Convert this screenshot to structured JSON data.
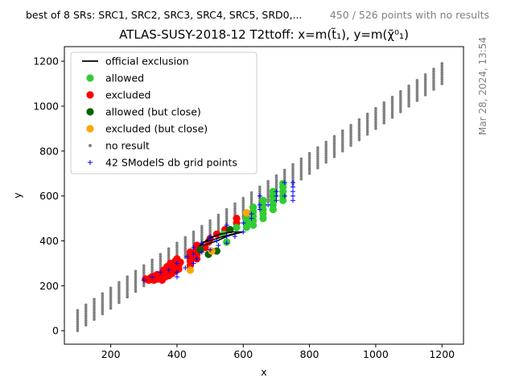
{
  "header": {
    "srs_text": "best of 8 SRs: SRC1, SRC2, SRC3, SRC4, SRC5, SRD0,...",
    "noresult_text": "450 / 526 points with no results",
    "title": "ATLAS-SUSY-2018-12 T2ttoff: x=m(t̃₁), y=m(χ̃⁰₁)",
    "side_date": "Mar 28, 2024, 13:54"
  },
  "colors": {
    "allowed": "#32cd32",
    "excluded": "#ff0000",
    "allowed_close": "#006400",
    "excluded_close": "#ffa500",
    "no_result": "#808080",
    "grid_points": "#0000ff",
    "official": "#000000"
  },
  "chart_data": {
    "type": "scatter",
    "xlabel": "x",
    "ylabel": "y",
    "xlim": [
      60,
      1265
    ],
    "ylim": [
      -60,
      1265
    ],
    "xticks": [
      200,
      400,
      600,
      800,
      1000,
      1200
    ],
    "yticks": [
      0,
      200,
      400,
      600,
      800,
      1000,
      1200
    ],
    "grid": false,
    "legend_position": "top-left",
    "legend": [
      {
        "key": "official",
        "label": "official exclusion"
      },
      {
        "key": "allowed",
        "label": "allowed"
      },
      {
        "key": "excluded",
        "label": "excluded"
      },
      {
        "key": "allowed_close",
        "label": "allowed (but close)"
      },
      {
        "key": "excluded_close",
        "label": "excluded (but close)"
      },
      {
        "key": "no_result",
        "label": "no result"
      },
      {
        "key": "grid_points",
        "label": "42 SModelS db grid points"
      }
    ],
    "no_result_region": {
      "x_min": 100,
      "x_max": 1200,
      "x_step": 25,
      "dm_min": 10,
      "dm_max": 100,
      "dm_step": 10
    },
    "allowed": [
      [
        720,
        620
      ],
      [
        720,
        640
      ],
      [
        720,
        600
      ],
      [
        720,
        580
      ],
      [
        720,
        655
      ],
      [
        690,
        600
      ],
      [
        690,
        580
      ],
      [
        690,
        560
      ],
      [
        690,
        540
      ],
      [
        690,
        620
      ],
      [
        660,
        560
      ],
      [
        660,
        540
      ],
      [
        660,
        520
      ],
      [
        660,
        500
      ],
      [
        660,
        580
      ],
      [
        630,
        530
      ],
      [
        630,
        510
      ],
      [
        630,
        490
      ],
      [
        630,
        470
      ],
      [
        630,
        550
      ],
      [
        610,
        480
      ],
      [
        610,
        460
      ],
      [
        610,
        500
      ],
      [
        580,
        460
      ],
      [
        540,
        430
      ],
      [
        550,
        395
      ]
    ],
    "excluded": [
      [
        305,
        230
      ],
      [
        315,
        225
      ],
      [
        325,
        240
      ],
      [
        330,
        225
      ],
      [
        340,
        250
      ],
      [
        345,
        235
      ],
      [
        355,
        255
      ],
      [
        360,
        270
      ],
      [
        365,
        240
      ],
      [
        370,
        285
      ],
      [
        375,
        260
      ],
      [
        380,
        300
      ],
      [
        385,
        275
      ],
      [
        390,
        300
      ],
      [
        395,
        280
      ],
      [
        400,
        320
      ],
      [
        405,
        290
      ],
      [
        410,
        305
      ],
      [
        320,
        235
      ],
      [
        335,
        245
      ],
      [
        350,
        240
      ],
      [
        360,
        250
      ],
      [
        370,
        260
      ],
      [
        380,
        270
      ],
      [
        390,
        285
      ],
      [
        400,
        295
      ],
      [
        395,
        310
      ],
      [
        340,
        230
      ],
      [
        355,
        225
      ],
      [
        365,
        265
      ],
      [
        375,
        245
      ],
      [
        385,
        255
      ],
      [
        395,
        265
      ],
      [
        405,
        275
      ],
      [
        440,
        330
      ],
      [
        440,
        310
      ],
      [
        440,
        290
      ],
      [
        440,
        350
      ],
      [
        460,
        340
      ],
      [
        460,
        360
      ],
      [
        460,
        380
      ],
      [
        460,
        320
      ],
      [
        485,
        370
      ],
      [
        495,
        395
      ],
      [
        500,
        410
      ],
      [
        520,
        430
      ],
      [
        545,
        450
      ],
      [
        580,
        480
      ],
      [
        580,
        500
      ]
    ],
    "allowed_close": [
      [
        495,
        340
      ],
      [
        520,
        355
      ],
      [
        560,
        450
      ],
      [
        470,
        360
      ]
    ],
    "excluded_close": [
      [
        610,
        525
      ],
      [
        440,
        270
      ],
      [
        505,
        355
      ]
    ],
    "smodels_grid": [
      [
        300,
        225
      ],
      [
        325,
        240
      ],
      [
        350,
        260
      ],
      [
        375,
        270
      ],
      [
        400,
        240
      ],
      [
        400,
        260
      ],
      [
        400,
        300
      ],
      [
        425,
        280
      ],
      [
        450,
        300
      ],
      [
        450,
        340
      ],
      [
        450,
        370
      ],
      [
        475,
        350
      ],
      [
        475,
        390
      ],
      [
        500,
        360
      ],
      [
        500,
        410
      ],
      [
        525,
        380
      ],
      [
        550,
        390
      ],
      [
        550,
        420
      ],
      [
        550,
        470
      ],
      [
        575,
        420
      ],
      [
        600,
        440
      ],
      [
        600,
        480
      ],
      [
        625,
        500
      ],
      [
        625,
        520
      ],
      [
        650,
        540
      ],
      [
        650,
        560
      ],
      [
        650,
        600
      ],
      [
        675,
        560
      ],
      [
        700,
        580
      ],
      [
        700,
        600
      ],
      [
        700,
        620
      ],
      [
        725,
        600
      ],
      [
        725,
        660
      ],
      [
        750,
        580
      ],
      [
        750,
        600
      ],
      [
        750,
        620
      ],
      [
        750,
        640
      ],
      [
        750,
        660
      ],
      [
        500,
        420
      ],
      [
        460,
        320
      ],
      [
        430,
        330
      ],
      [
        520,
        400
      ]
    ],
    "official_exclusion": [
      [
        475,
        385
      ],
      [
        495,
        410
      ],
      [
        530,
        430
      ],
      [
        570,
        440
      ],
      [
        600,
        440
      ],
      [
        560,
        425
      ],
      [
        520,
        400
      ],
      [
        490,
        385
      ],
      [
        470,
        380
      ],
      [
        480,
        395
      ],
      [
        510,
        405
      ],
      [
        540,
        420
      ],
      [
        580,
        435
      ]
    ]
  }
}
